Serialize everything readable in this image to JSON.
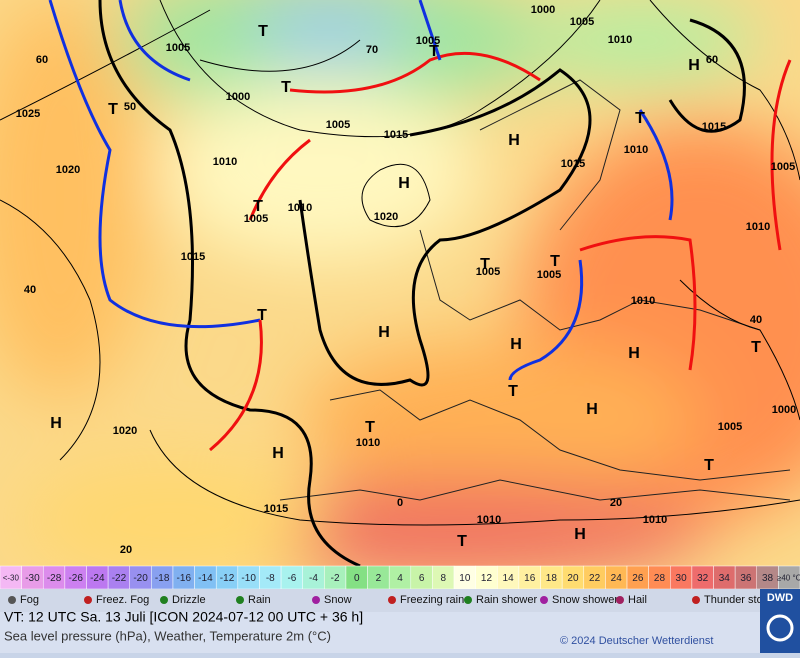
{
  "map_labels": [
    "1000",
    "1005",
    "1010",
    "1005",
    "1005",
    "H",
    "1015",
    "1025",
    "1000",
    "1005",
    "1015",
    "H",
    "1010",
    "1020",
    "1010",
    "1015",
    "H",
    "1005",
    "1010",
    "1005",
    "1020",
    "1010",
    "1015",
    "1005",
    "1005",
    "T",
    "T",
    "1010",
    "H",
    "H",
    "H",
    "T",
    "T",
    "T",
    "T",
    "H",
    "1020",
    "T",
    "1010",
    "H",
    "1000",
    "1005",
    "T",
    "T",
    "H",
    "1015",
    "1010",
    "1010",
    "T",
    "H",
    "T",
    "T",
    "T",
    "T",
    "60",
    "50",
    "40",
    "70",
    "0",
    "20",
    "20",
    "60",
    "40"
  ],
  "colorbar": {
    "low_label": "<-30",
    "high_label": "≥40 °C",
    "labels": [
      -30,
      -28,
      -26,
      -24,
      -22,
      -20,
      -18,
      -16,
      -14,
      -12,
      -10,
      -8,
      -6,
      -4,
      -2,
      0,
      2,
      4,
      6,
      8,
      10,
      12,
      14,
      16,
      18,
      20,
      22,
      24,
      26,
      28,
      30,
      32,
      34,
      36,
      38
    ],
    "low_color": "#f4b8f4",
    "high_color": "#a8a8a8",
    "colors": [
      "#e89ce8",
      "#dc8cec",
      "#cc80f0",
      "#bc78f0",
      "#aa80f0",
      "#9890f0",
      "#88a0f0",
      "#80b0f0",
      "#80c0f4",
      "#88cff6",
      "#98def8",
      "#a4eaf8",
      "#a8f2ee",
      "#a8f2d8",
      "#a8f0bc",
      "#84e084",
      "#98e898",
      "#b0f0a4",
      "#c8f4a8",
      "#ddf8b4",
      "#ffffe4",
      "#ffffd0",
      "#fff8bc",
      "#fff0a0",
      "#ffe888",
      "#ffdc70",
      "#ffcc60",
      "#ffb854",
      "#ffa050",
      "#ff8c54",
      "#fa7860",
      "#ee6c6c",
      "#de6c6c",
      "#cc7474",
      "#b48888"
    ]
  },
  "weather_legend": [
    "Fog",
    "Freez. Fog",
    "Drizzle",
    "Rain",
    "Snow",
    "Freezing rain",
    "Rain shower",
    "Snow shower",
    "Hail",
    "Thunder storm"
  ],
  "footer": {
    "valid_time": "VT: 12 UTC Sa.  13 Juli [ICON 2024-07-12  00 UTC + 36 h]",
    "description": "Sea level pressure (hPa), Weather, Temperature 2m (°C)",
    "copyright": "© 2024 Deutscher Wetterdienst",
    "logo": "DWD"
  }
}
